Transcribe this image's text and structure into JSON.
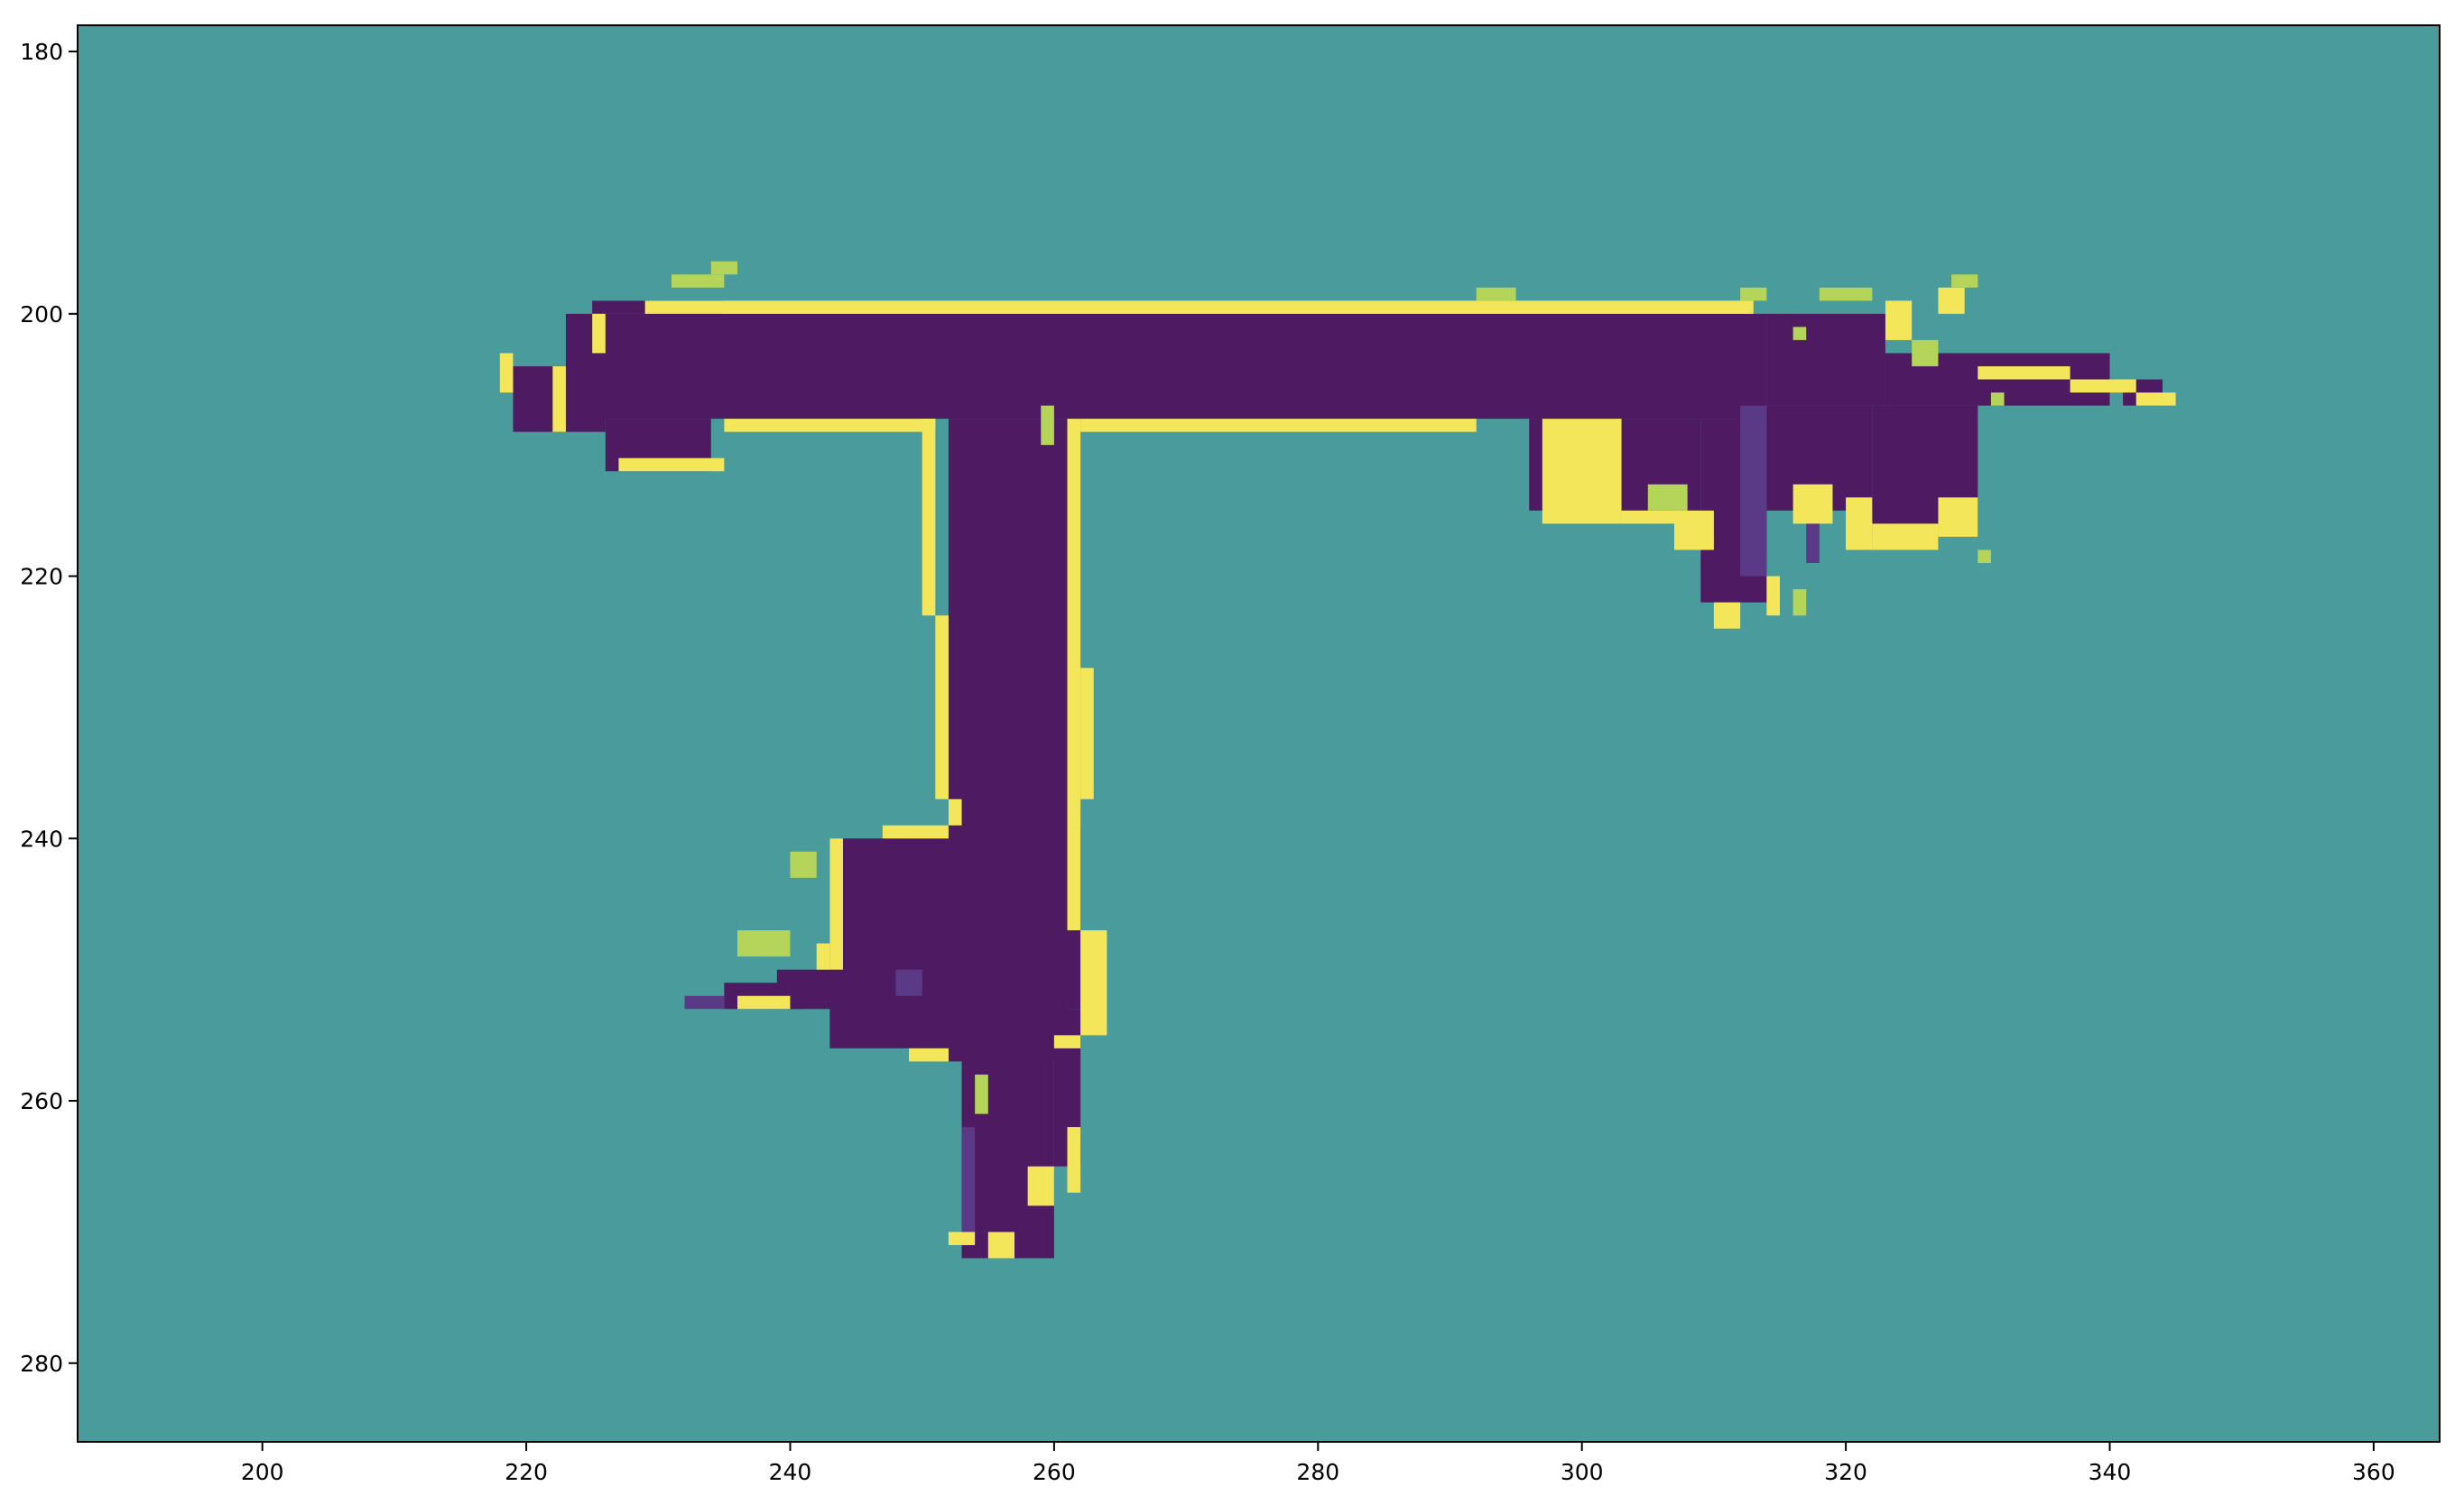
{
  "chart_data": {
    "type": "heatmap",
    "title": "",
    "xlabel": "",
    "ylabel": "",
    "xlim": [
      186,
      365
    ],
    "ylim": [
      286,
      178
    ],
    "y_axis_inverted": true,
    "grid": false,
    "legend": "none",
    "x_ticks": [
      200,
      220,
      240,
      260,
      280,
      300,
      320,
      340,
      360
    ],
    "y_ticks": [
      180,
      200,
      220,
      240,
      260,
      280
    ],
    "x_tick_labels": [
      "200",
      "220",
      "240",
      "260",
      "280",
      "300",
      "320",
      "340",
      "360"
    ],
    "y_tick_labels": [
      "180",
      "200",
      "220",
      "240",
      "260",
      "280"
    ],
    "colors": {
      "background": "#4a9c9c",
      "free": "#4e1a62",
      "free_light": "#5a3a86",
      "edge": "#f4e65a",
      "edge_soft": "#b4d45a",
      "frame": "#000000"
    },
    "regions": {
      "free": [
        [
          223,
          200,
          314,
          208
        ],
        [
          219,
          204,
          226,
          209
        ],
        [
          225,
          199,
          235,
          200
        ],
        [
          226,
          208,
          234,
          212
        ],
        [
          314,
          200,
          323,
          207
        ],
        [
          323,
          203,
          340,
          207
        ],
        [
          341,
          205,
          344,
          207
        ],
        [
          296,
          208,
          309,
          215
        ],
        [
          309,
          208,
          314,
          222
        ],
        [
          314,
          207,
          322,
          215
        ],
        [
          322,
          207,
          330,
          217
        ],
        [
          252,
          208,
          261,
          257
        ],
        [
          252,
          239,
          262,
          253
        ],
        [
          243,
          240,
          253,
          256
        ],
        [
          239,
          250,
          247,
          253
        ],
        [
          235,
          251,
          241,
          253
        ],
        [
          253,
          253,
          260,
          272
        ],
        [
          260,
          253,
          262,
          265
        ]
      ],
      "free_light": [
        [
          253,
          262,
          254,
          271
        ],
        [
          248,
          250,
          250,
          252
        ],
        [
          232,
          252,
          235,
          253
        ],
        [
          312,
          207,
          314,
          220
        ],
        [
          317,
          214,
          318,
          219
        ]
      ],
      "edge": [
        [
          229,
          199,
          313,
          200
        ],
        [
          235,
          208,
          251,
          209
        ],
        [
          262,
          208,
          292,
          209
        ],
        [
          225,
          200,
          226,
          203
        ],
        [
          222,
          204,
          223,
          209
        ],
        [
          218,
          203,
          219,
          206
        ],
        [
          227,
          211,
          235,
          212
        ],
        [
          250,
          208,
          251,
          223
        ],
        [
          251,
          223,
          252,
          237
        ],
        [
          252,
          237,
          253,
          239
        ],
        [
          247,
          239,
          252,
          240
        ],
        [
          243,
          240,
          244,
          250
        ],
        [
          242,
          248,
          243,
          250
        ],
        [
          261,
          208,
          262,
          247
        ],
        [
          262,
          227,
          263,
          237
        ],
        [
          262,
          247,
          264,
          255
        ],
        [
          260,
          255,
          262,
          256
        ],
        [
          261,
          262,
          262,
          267
        ],
        [
          258,
          265,
          260,
          268
        ],
        [
          255,
          270,
          257,
          272
        ],
        [
          252,
          270,
          254,
          271
        ],
        [
          249,
          256,
          252,
          257
        ],
        [
          236,
          252,
          240,
          253
        ],
        [
          297,
          208,
          303,
          216
        ],
        [
          303,
          215,
          308,
          216
        ],
        [
          307,
          215,
          310,
          218
        ],
        [
          310,
          222,
          312,
          224
        ],
        [
          314,
          220,
          315,
          223
        ],
        [
          316,
          213,
          319,
          216
        ],
        [
          320,
          214,
          322,
          218
        ],
        [
          322,
          216,
          327,
          218
        ],
        [
          327,
          214,
          330,
          217
        ],
        [
          323,
          199,
          325,
          202
        ],
        [
          327,
          198,
          329,
          200
        ],
        [
          330,
          204,
          337,
          205
        ],
        [
          337,
          205,
          342,
          206
        ],
        [
          342,
          206,
          345,
          207
        ]
      ],
      "edge_soft": [
        [
          231,
          197,
          235,
          198
        ],
        [
          234,
          196,
          236,
          197
        ],
        [
          292,
          198,
          295,
          199
        ],
        [
          312,
          198,
          314,
          199
        ],
        [
          318,
          198,
          322,
          199
        ],
        [
          328,
          197,
          330,
          198
        ],
        [
          305,
          213,
          308,
          215
        ],
        [
          316,
          201,
          317,
          202
        ],
        [
          325,
          202,
          327,
          204
        ],
        [
          331,
          206,
          332,
          207
        ],
        [
          259,
          207,
          260,
          210
        ],
        [
          240,
          241,
          242,
          243
        ],
        [
          236,
          247,
          240,
          249
        ],
        [
          254,
          258,
          255,
          261
        ],
        [
          316,
          221,
          317,
          223
        ],
        [
          330,
          218,
          331,
          219
        ]
      ]
    }
  }
}
